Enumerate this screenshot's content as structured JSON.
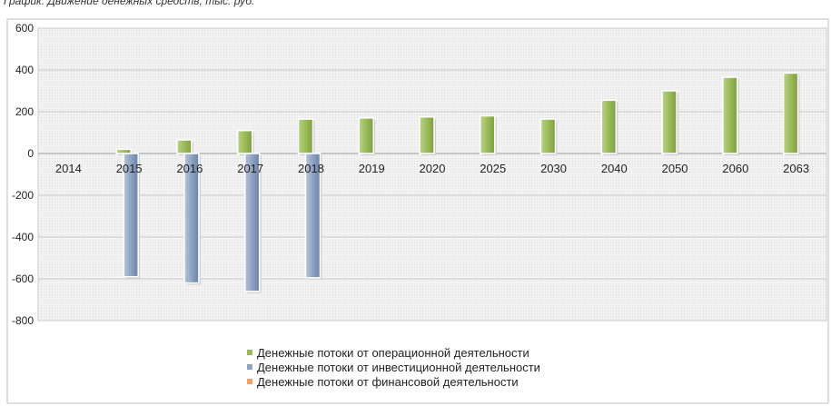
{
  "title": "График. Движение денежных средств, тыс. руб.",
  "colors": {
    "operating": "#9bbb59",
    "investing": "#8ea3c2",
    "financing": "#f0a060"
  },
  "chart_data": {
    "type": "bar",
    "title": "График. Движение денежных средств, тыс. руб.",
    "categories": [
      "2014",
      "2015",
      "2016",
      "2017",
      "2018",
      "2019",
      "2020",
      "2025",
      "2030",
      "2040",
      "2050",
      "2060",
      "2063"
    ],
    "ylim": [
      -800,
      600
    ],
    "yticks": [
      "600",
      "400",
      "200",
      "0",
      "-200",
      "-400",
      "-600",
      "-800"
    ],
    "grid": true,
    "legend_position": "bottom",
    "series": [
      {
        "name": "Денежные потоки от операционной деятельности",
        "values": [
          0,
          20,
          65,
          110,
          165,
          170,
          175,
          180,
          165,
          255,
          300,
          365,
          385
        ]
      },
      {
        "name": "Денежные потоки от инвестиционной деятельности",
        "values": [
          0,
          -590,
          -620,
          -660,
          -595,
          0,
          0,
          0,
          0,
          0,
          0,
          0,
          0
        ]
      },
      {
        "name": "Денежные потоки от финансовой деятельности",
        "values": [
          0,
          0,
          0,
          0,
          0,
          0,
          0,
          0,
          0,
          0,
          0,
          0,
          0
        ]
      }
    ]
  }
}
